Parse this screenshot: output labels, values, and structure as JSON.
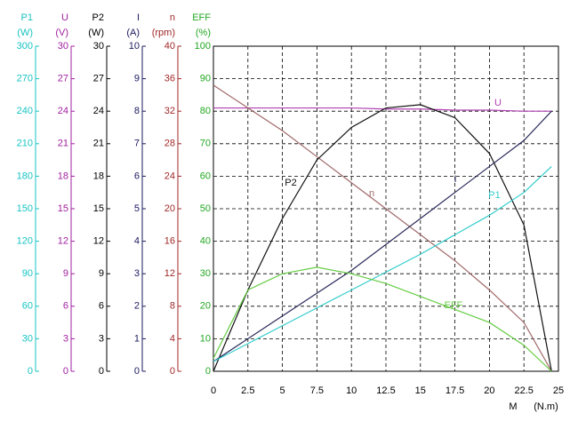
{
  "chart_data": {
    "type": "line",
    "x_label": "M",
    "x_unit": "(N.m)",
    "x": [
      0,
      2.5,
      5,
      7.5,
      10,
      12.5,
      15,
      17.5,
      20,
      22.5,
      24.5
    ],
    "xlim": [
      0,
      25
    ],
    "xticks": [
      0,
      2.5,
      5,
      7.5,
      10,
      12.5,
      15,
      17.5,
      20,
      22.5,
      25
    ],
    "grid": true,
    "axes": [
      {
        "name": "P1",
        "unit": "(W)",
        "color": "#19c3c3",
        "ylim": [
          0,
          300
        ],
        "yticks": [
          0,
          30,
          60,
          90,
          120,
          150,
          180,
          210,
          240,
          270,
          300
        ]
      },
      {
        "name": "U",
        "unit": "(V)",
        "color": "#a020a0",
        "ylim": [
          0,
          30
        ],
        "yticks": [
          0,
          3,
          6,
          9,
          12,
          15,
          18,
          21,
          24,
          27,
          30
        ]
      },
      {
        "name": "P2",
        "unit": "(W)",
        "color": "#000000",
        "ylim": [
          0,
          30
        ],
        "yticks": [
          0,
          3,
          6,
          9,
          12,
          15,
          18,
          21,
          24,
          27,
          30
        ]
      },
      {
        "name": "I",
        "unit": "(A)",
        "color": "#1a1a5e",
        "ylim": [
          0,
          10
        ],
        "yticks": [
          0,
          1,
          2,
          3,
          4,
          5,
          6,
          7,
          8,
          9,
          10
        ]
      },
      {
        "name": "n",
        "unit": "(rpm)",
        "color": "#a02828",
        "ylim": [
          0,
          40
        ],
        "yticks": [
          0,
          4,
          8,
          12,
          16,
          20,
          24,
          28,
          32,
          36,
          40
        ]
      },
      {
        "name": "EFF",
        "unit": "(%)",
        "color": "#22a822",
        "ylim": [
          0,
          100
        ],
        "yticks": [
          0,
          10,
          20,
          30,
          40,
          50,
          60,
          70,
          80,
          90,
          100
        ]
      }
    ],
    "series": [
      {
        "name": "U",
        "color": "#b040b0",
        "axis": 1,
        "values": [
          24.3,
          24.3,
          24.3,
          24.3,
          24.3,
          24.2,
          24.2,
          24.1,
          24.1,
          24.0,
          24.0
        ]
      },
      {
        "name": "n",
        "color": "#a06868",
        "axis": 4,
        "values": [
          35.2,
          32.4,
          29.6,
          26.4,
          23.2,
          20,
          16.8,
          13.6,
          10,
          6,
          0
        ]
      },
      {
        "name": "P2",
        "color": "#111111",
        "axis": 2,
        "values": [
          0,
          7.5,
          14.1,
          19.5,
          22.5,
          24.3,
          24.6,
          23.4,
          20.1,
          13.5,
          0
        ]
      },
      {
        "name": "I",
        "color": "#2a2a5a",
        "axis": 3,
        "values": [
          0.3,
          1.0,
          1.7,
          2.4,
          3.1,
          3.9,
          4.7,
          5.5,
          6.3,
          7.1,
          8.0
        ]
      },
      {
        "name": "P1",
        "color": "#33cccc",
        "axis": 0,
        "values": [
          9,
          25.5,
          42,
          58.5,
          75,
          91.5,
          108,
          126,
          144,
          165,
          189
        ]
      },
      {
        "name": "EFF",
        "color": "#66cc44",
        "axis": 5,
        "values": [
          4,
          25,
          30,
          32,
          30,
          27,
          23,
          19,
          15,
          8,
          0
        ]
      }
    ]
  }
}
